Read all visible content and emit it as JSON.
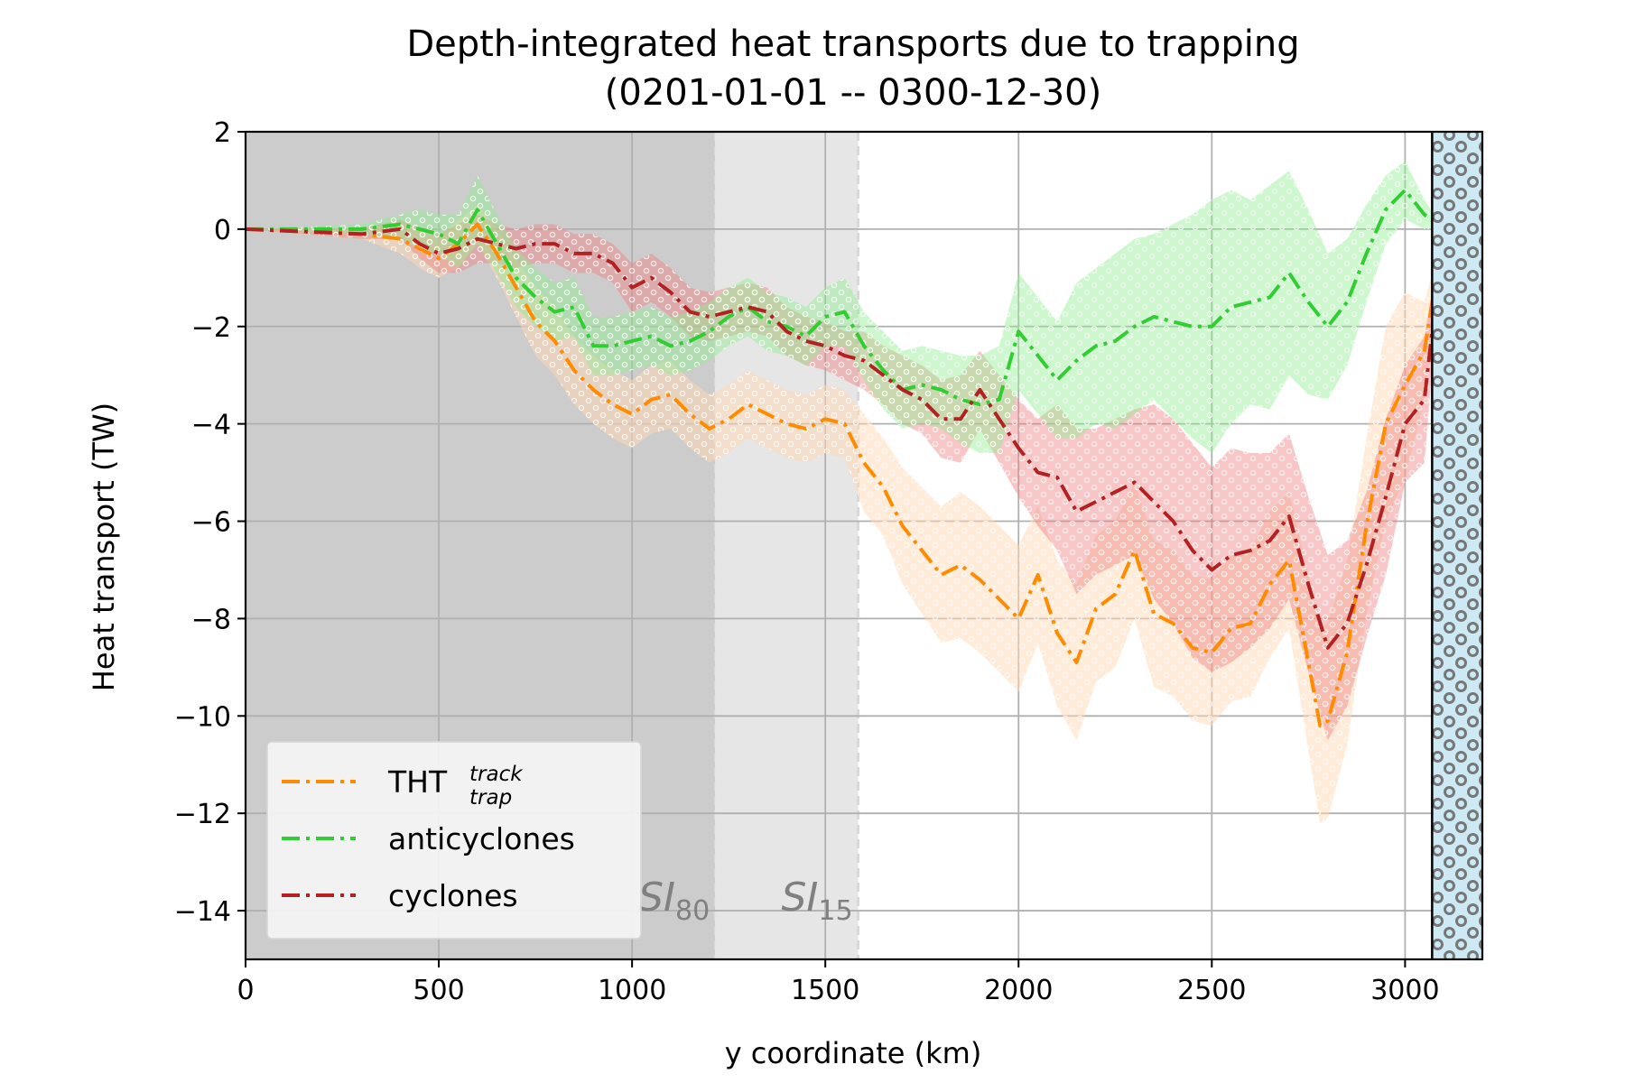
{
  "chart_data": {
    "type": "line",
    "title": "Depth-integrated heat transports due to trapping",
    "subtitle": "(0201-01-01 -- 0300-12-30)",
    "xlabel": "y coordinate (km)",
    "ylabel": "Heat transport (TW)",
    "xlim": [
      0,
      3200
    ],
    "ylim": [
      -15,
      2
    ],
    "xticks": [
      0,
      500,
      1000,
      1500,
      2000,
      2500,
      3000
    ],
    "yticks": [
      2,
      0,
      -2,
      -4,
      -6,
      -8,
      -10,
      -12,
      -14
    ],
    "grid": true,
    "legend_position": "lower-left",
    "regions": [
      {
        "name": "SI80",
        "label_main": "SI",
        "label_sub": "80",
        "x_start": 0,
        "x_end": 1215,
        "color": "#cccccc"
      },
      {
        "name": "SI15",
        "label_main": "SI",
        "label_sub": "15",
        "x_start": 1215,
        "x_end": 1585,
        "color": "#e6e6e6"
      },
      {
        "name": "land",
        "x_start": 3070,
        "x_end": 3200,
        "color": "#cce9f4",
        "hatch": "circles"
      }
    ],
    "series": [
      {
        "name": "THT",
        "name_sup": "track",
        "name_sub": "trap",
        "color": "#ff8c00",
        "band_color": "#ffd8b0",
        "band_opacity": 0.5,
        "x": [
          0,
          300,
          400,
          450,
          500,
          550,
          600,
          650,
          700,
          750,
          800,
          850,
          900,
          950,
          1000,
          1050,
          1100,
          1150,
          1200,
          1250,
          1300,
          1350,
          1400,
          1450,
          1500,
          1550,
          1600,
          1650,
          1700,
          1750,
          1800,
          1850,
          1900,
          1950,
          2000,
          2050,
          2100,
          2150,
          2200,
          2250,
          2300,
          2350,
          2400,
          2450,
          2500,
          2550,
          2600,
          2650,
          2700,
          2750,
          2780,
          2800,
          2850,
          2900,
          2950,
          3000,
          3050,
          3100,
          3200
        ],
        "y": [
          0,
          -0.1,
          -0.2,
          -0.4,
          -0.6,
          -0.3,
          0.1,
          -0.5,
          -1.2,
          -1.9,
          -2.3,
          -2.9,
          -3.3,
          -3.6,
          -3.8,
          -3.5,
          -3.4,
          -3.8,
          -4.1,
          -3.9,
          -3.6,
          -3.8,
          -4.0,
          -4.1,
          -3.9,
          -4.0,
          -4.8,
          -5.3,
          -6.1,
          -6.6,
          -7.1,
          -6.9,
          -7.2,
          -7.6,
          -8.0,
          -7.1,
          -8.3,
          -8.9,
          -7.8,
          -7.5,
          -6.6,
          -7.9,
          -8.1,
          -8.6,
          -8.7,
          -8.2,
          -8.1,
          -7.3,
          -6.8,
          -8.9,
          -10.2,
          -10.1,
          -8.7,
          -6.1,
          -4.0,
          -3.2,
          -2.5,
          0,
          0
        ],
        "band_upper": [
          0,
          0,
          0.1,
          0,
          -0.2,
          0.2,
          0.5,
          0,
          -0.6,
          -1.2,
          -1.6,
          -2.2,
          -2.6,
          -2.9,
          -3.1,
          -2.8,
          -2.7,
          -3.1,
          -3.4,
          -3.2,
          -2.9,
          -3.1,
          -3.3,
          -3.4,
          -3.2,
          -3.3,
          -3.8,
          -4.3,
          -4.9,
          -5.3,
          -5.7,
          -5.4,
          -5.7,
          -6.1,
          -6.5,
          -5.7,
          -6.8,
          -7.3,
          -6.3,
          -6.0,
          -5.2,
          -6.4,
          -6.6,
          -7.1,
          -7.2,
          -6.7,
          -6.6,
          -5.8,
          -5.4,
          -7.1,
          -8.2,
          -8.1,
          -6.8,
          -4.3,
          -2.0,
          -1.3,
          -1.5,
          0,
          0
        ],
        "band_lower": [
          0,
          -0.2,
          -0.5,
          -0.8,
          -1.0,
          -0.8,
          -0.3,
          -1.0,
          -1.8,
          -2.6,
          -3.0,
          -3.6,
          -4.0,
          -4.3,
          -4.5,
          -4.2,
          -4.1,
          -4.5,
          -4.8,
          -4.6,
          -4.3,
          -4.5,
          -4.7,
          -4.8,
          -4.6,
          -4.7,
          -5.8,
          -6.3,
          -7.3,
          -7.9,
          -8.5,
          -8.4,
          -8.7,
          -9.1,
          -9.5,
          -8.5,
          -9.8,
          -10.5,
          -9.3,
          -9.0,
          -8.0,
          -9.4,
          -9.6,
          -10.1,
          -10.2,
          -9.7,
          -9.6,
          -8.8,
          -8.2,
          -10.7,
          -12.2,
          -12.1,
          -10.6,
          -7.9,
          -6.0,
          -5.1,
          -3.5,
          0,
          0
        ]
      },
      {
        "name": "anticyclones",
        "color": "#32cd32",
        "band_color": "#90ee90",
        "band_opacity": 0.45,
        "x": [
          0,
          300,
          400,
          450,
          500,
          550,
          600,
          650,
          700,
          750,
          800,
          850,
          900,
          950,
          1000,
          1050,
          1100,
          1150,
          1200,
          1250,
          1300,
          1350,
          1400,
          1450,
          1500,
          1550,
          1600,
          1650,
          1700,
          1750,
          1800,
          1850,
          1900,
          1950,
          2000,
          2050,
          2100,
          2150,
          2200,
          2250,
          2300,
          2350,
          2400,
          2450,
          2500,
          2550,
          2600,
          2650,
          2700,
          2750,
          2800,
          2850,
          2900,
          2950,
          3000,
          3050,
          3100,
          3200
        ],
        "y": [
          0,
          0,
          0.1,
          0,
          -0.1,
          -0.3,
          0.4,
          -0.3,
          -1.0,
          -1.4,
          -1.7,
          -1.6,
          -2.4,
          -2.4,
          -2.3,
          -2.2,
          -2.4,
          -2.3,
          -2.1,
          -1.8,
          -1.6,
          -1.9,
          -2.0,
          -2.2,
          -1.8,
          -1.7,
          -2.4,
          -2.9,
          -3.3,
          -3.2,
          -3.3,
          -3.5,
          -3.6,
          -3.5,
          -2.1,
          -2.6,
          -3.1,
          -2.7,
          -2.4,
          -2.3,
          -2.0,
          -1.8,
          -1.9,
          -2.0,
          -2.0,
          -1.6,
          -1.5,
          -1.4,
          -0.9,
          -1.5,
          -2.0,
          -1.5,
          -0.5,
          0.4,
          0.8,
          0.3,
          0,
          0
        ],
        "band_upper": [
          0,
          0.1,
          0.3,
          0.4,
          0.3,
          0.3,
          1.1,
          0.3,
          -0.4,
          -0.8,
          -1.1,
          -1.0,
          -1.8,
          -1.8,
          -1.7,
          -1.6,
          -1.8,
          -1.7,
          -1.5,
          -1.2,
          -1.0,
          -1.3,
          -1.4,
          -1.6,
          -1.2,
          -1.0,
          -1.7,
          -2.1,
          -2.5,
          -2.4,
          -2.5,
          -2.6,
          -2.6,
          -2.4,
          -0.9,
          -1.4,
          -1.9,
          -1.1,
          -0.8,
          -0.5,
          -0.2,
          -0.1,
          0.1,
          0.3,
          0.6,
          0.8,
          0.6,
          0.9,
          1.2,
          0.4,
          -0.5,
          -0.2,
          0.5,
          1.1,
          1.4,
          0.6,
          0,
          0
        ],
        "band_lower": [
          0,
          -0.1,
          -0.2,
          -0.4,
          -0.5,
          -0.8,
          -0.3,
          -0.9,
          -1.6,
          -2.0,
          -2.3,
          -2.2,
          -3.0,
          -3.0,
          -2.9,
          -2.8,
          -3.0,
          -2.9,
          -2.7,
          -2.4,
          -2.2,
          -2.5,
          -2.6,
          -2.8,
          -2.4,
          -2.4,
          -3.1,
          -3.7,
          -4.1,
          -4.0,
          -4.1,
          -4.4,
          -4.6,
          -4.6,
          -3.3,
          -3.8,
          -4.3,
          -4.3,
          -4.0,
          -4.1,
          -3.8,
          -3.5,
          -3.9,
          -4.3,
          -4.6,
          -4.0,
          -3.6,
          -3.7,
          -3.0,
          -3.4,
          -3.5,
          -2.8,
          -1.5,
          -0.3,
          0.2,
          0,
          0,
          0
        ]
      },
      {
        "name": "cyclones",
        "color": "#b22222",
        "band_color": "#f08080",
        "band_opacity": 0.45,
        "x": [
          0,
          300,
          400,
          450,
          500,
          550,
          600,
          650,
          700,
          750,
          800,
          850,
          900,
          950,
          1000,
          1050,
          1100,
          1150,
          1200,
          1250,
          1300,
          1350,
          1400,
          1450,
          1500,
          1550,
          1600,
          1650,
          1700,
          1750,
          1800,
          1850,
          1900,
          1950,
          2000,
          2050,
          2100,
          2150,
          2200,
          2250,
          2300,
          2350,
          2400,
          2450,
          2500,
          2550,
          2600,
          2650,
          2700,
          2750,
          2800,
          2850,
          2900,
          2950,
          3000,
          3050,
          3100,
          3200
        ],
        "y": [
          0,
          -0.1,
          0,
          -0.3,
          -0.5,
          -0.4,
          -0.2,
          -0.3,
          -0.4,
          -0.3,
          -0.3,
          -0.5,
          -0.5,
          -0.7,
          -1.2,
          -1.0,
          -1.3,
          -1.7,
          -1.8,
          -1.7,
          -1.6,
          -1.7,
          -2.1,
          -2.3,
          -2.4,
          -2.6,
          -2.7,
          -3.0,
          -3.3,
          -3.5,
          -3.9,
          -3.9,
          -3.3,
          -3.9,
          -4.5,
          -5.0,
          -5.1,
          -5.8,
          -5.6,
          -5.4,
          -5.2,
          -5.6,
          -6.0,
          -6.6,
          -7.0,
          -6.7,
          -6.6,
          -6.4,
          -5.9,
          -7.3,
          -8.6,
          -8.1,
          -6.9,
          -5.5,
          -4.0,
          -3.5,
          0,
          0
        ],
        "band_upper": [
          0,
          0,
          0.2,
          0,
          -0.1,
          0.1,
          0.3,
          0.1,
          0,
          0.1,
          0.1,
          -0.1,
          -0.1,
          -0.3,
          -0.7,
          -0.5,
          -0.8,
          -1.2,
          -1.3,
          -1.2,
          -1.1,
          -1.2,
          -1.6,
          -1.8,
          -1.9,
          -2.1,
          -2.1,
          -2.4,
          -2.6,
          -2.8,
          -3.1,
          -3.0,
          -2.5,
          -3.0,
          -3.5,
          -3.9,
          -3.6,
          -4.1,
          -4.1,
          -3.9,
          -3.7,
          -3.6,
          -3.9,
          -4.4,
          -4.9,
          -4.5,
          -4.6,
          -4.6,
          -4.2,
          -5.5,
          -6.7,
          -6.4,
          -5.4,
          -3.9,
          -2.8,
          -2.2,
          0,
          0
        ],
        "band_lower": [
          0,
          -0.2,
          -0.2,
          -0.6,
          -0.9,
          -0.9,
          -0.7,
          -0.7,
          -0.8,
          -0.7,
          -0.7,
          -0.9,
          -0.9,
          -1.1,
          -1.7,
          -1.5,
          -1.8,
          -2.2,
          -2.3,
          -2.2,
          -2.1,
          -2.2,
          -2.6,
          -2.8,
          -2.9,
          -3.1,
          -3.3,
          -3.6,
          -4.0,
          -4.2,
          -4.7,
          -4.8,
          -4.1,
          -4.8,
          -5.5,
          -6.1,
          -6.6,
          -7.5,
          -7.1,
          -6.9,
          -6.7,
          -7.6,
          -8.1,
          -8.8,
          -9.1,
          -8.9,
          -8.6,
          -8.2,
          -7.6,
          -9.1,
          -10.5,
          -9.8,
          -8.4,
          -7.1,
          -5.2,
          -4.8,
          0,
          0
        ]
      }
    ]
  }
}
